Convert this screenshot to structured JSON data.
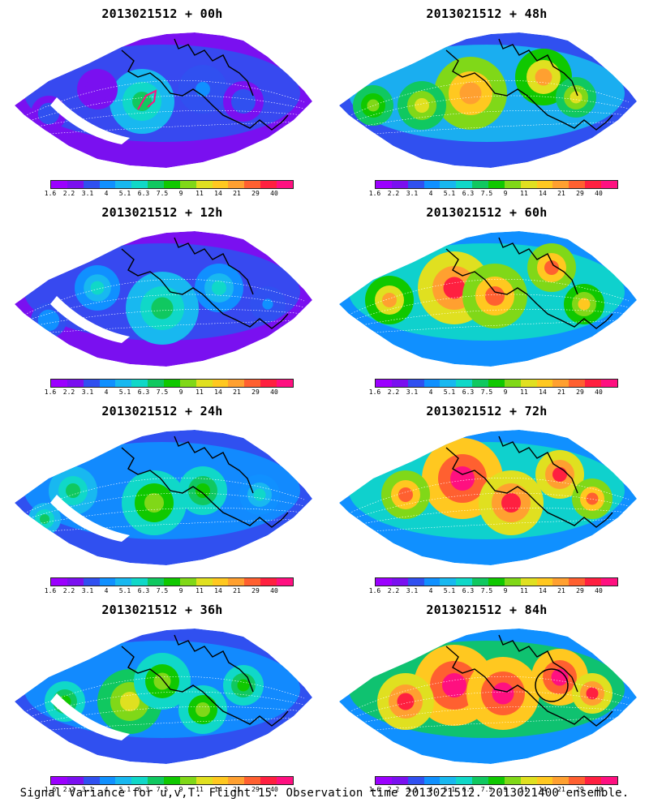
{
  "figure": {
    "caption": "Signal Variance for u,v,T. Flight 15. Observation time 2013021512. 2013021400 ensemble."
  },
  "panels": [
    {
      "title": "2013021512 + 00h"
    },
    {
      "title": "2013021512 + 12h"
    },
    {
      "title": "2013021512 + 24h"
    },
    {
      "title": "2013021512 + 36h"
    },
    {
      "title": "2013021512 + 48h"
    },
    {
      "title": "2013021512 + 60h"
    },
    {
      "title": "2013021512 + 72h"
    },
    {
      "title": "2013021512 + 84h"
    }
  ],
  "colorbar": {
    "labels": [
      "1.6",
      "2.2",
      "3.1",
      "4",
      "5.1",
      "6.3",
      "7.5",
      "9",
      "11",
      "14",
      "21",
      "29",
      "40"
    ],
    "colors": [
      "#9b00ff",
      "#7a10f0",
      "#3050f0",
      "#1090ff",
      "#18b8f0",
      "#10d8c8",
      "#10c860",
      "#10c800",
      "#80d818",
      "#e0e020",
      "#ffc820",
      "#ffa030",
      "#ff6030",
      "#ff2040",
      "#ff1080"
    ]
  },
  "legend_color_mapping_note": ""
}
